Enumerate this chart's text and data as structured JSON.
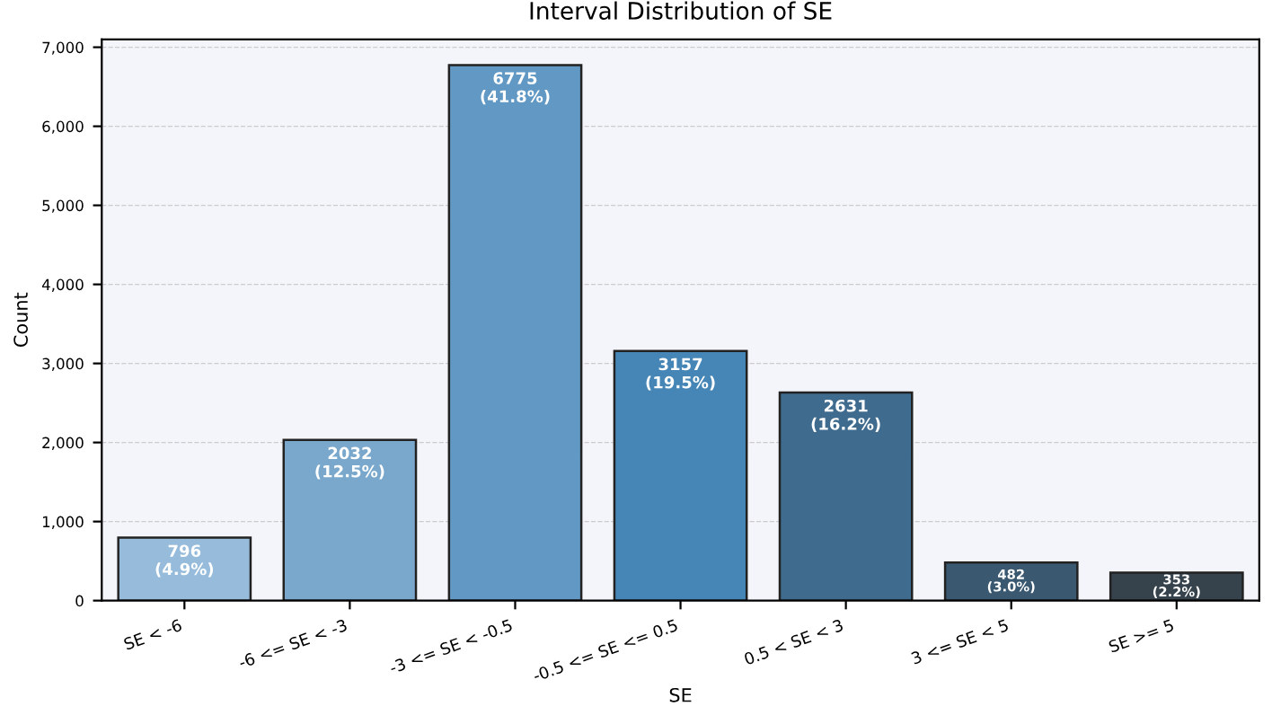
{
  "chart_data": {
    "type": "bar",
    "title": "Interval Distribution of SE",
    "xlabel": "SE",
    "ylabel": "Count",
    "categories": [
      "SE < -6",
      "-6 <= SE < -3",
      "-3 <= SE < -0.5",
      "-0.5 <= SE <= 0.5",
      "0.5 < SE < 3",
      "3 <= SE < 5",
      "SE >= 5"
    ],
    "values": [
      796,
      2032,
      6775,
      3157,
      2631,
      482,
      353
    ],
    "colors": [
      "#97bcdb",
      "#7aa8cc",
      "#6299c4",
      "#4686b6",
      "#3f6b8f",
      "#3a5870",
      "#36434d"
    ],
    "value_labels": [
      "796\n(4.9%)",
      "2032\n(12.5%)",
      "6775\n(41.8%)",
      "3157\n(19.5%)",
      "2631\n(16.2%)",
      "482\n(3.0%)",
      "353\n(2.2%)"
    ],
    "ylim": [
      0,
      7100
    ],
    "yticks": [
      0,
      {
        "value": 1000,
        "label": "1,000"
      },
      {
        "value": 2000,
        "label": "2,000"
      },
      {
        "value": 3000,
        "label": "3,000"
      },
      {
        "value": 4000,
        "label": "4,000"
      },
      {
        "value": 5000,
        "label": "5,000"
      },
      {
        "value": 6000,
        "label": "6,000"
      },
      {
        "value": 7000,
        "label": "7,000"
      }
    ],
    "grid": "y"
  }
}
